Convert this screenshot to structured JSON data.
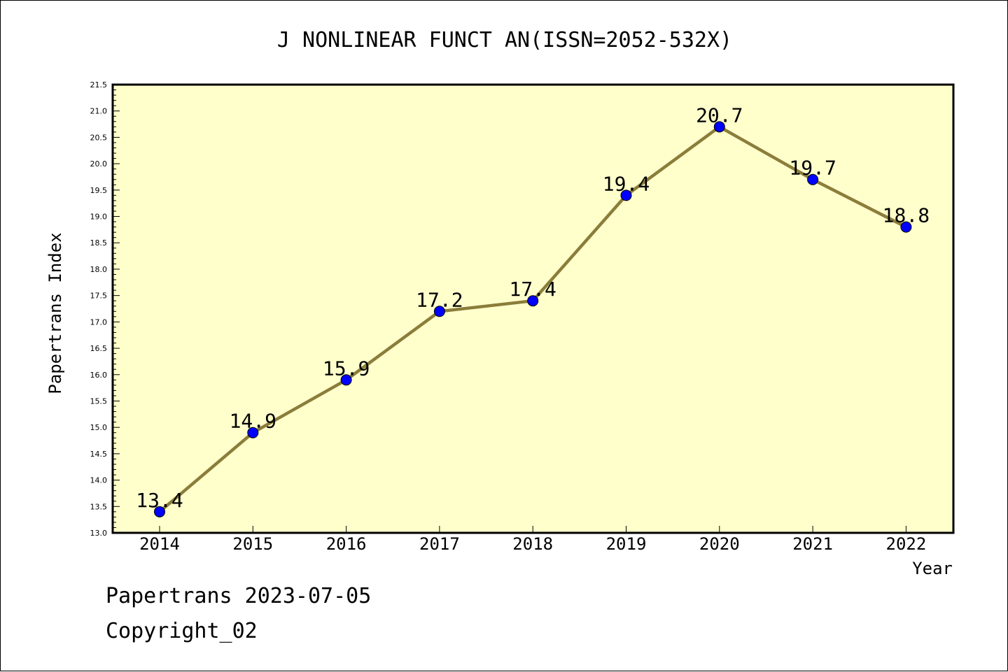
{
  "chart_data": {
    "type": "line",
    "title": "J NONLINEAR FUNCT AN(ISSN=2052-532X)",
    "xlabel": "Year",
    "ylabel": "Papertrans Index",
    "categories": [
      "2014",
      "2015",
      "2016",
      "2017",
      "2018",
      "2019",
      "2020",
      "2021",
      "2022"
    ],
    "series": [
      {
        "values": [
          13.4,
          14.9,
          15.9,
          17.2,
          17.4,
          19.4,
          20.7,
          19.7,
          18.8
        ],
        "labels": [
          "13.4",
          "14.9",
          "15.9",
          "17.2",
          "17.4",
          "19.4",
          "20.7",
          "19.7",
          "18.8"
        ]
      }
    ],
    "ylim": [
      13.0,
      21.5
    ],
    "yticks": [
      "13.0",
      "13.5",
      "14.0",
      "14.5",
      "15.0",
      "15.5",
      "16.0",
      "16.5",
      "17.0",
      "17.5",
      "18.0",
      "18.5",
      "19.0",
      "19.5",
      "20.0",
      "20.5",
      "21.0",
      "21.5"
    ],
    "grid": false,
    "colors": {
      "plot_background": "#ffffcc",
      "line": "#8b7d3a",
      "marker": "#0000ff"
    }
  },
  "footer": {
    "line1": "Papertrans 2023-07-05",
    "line2": "Copyright_02"
  }
}
